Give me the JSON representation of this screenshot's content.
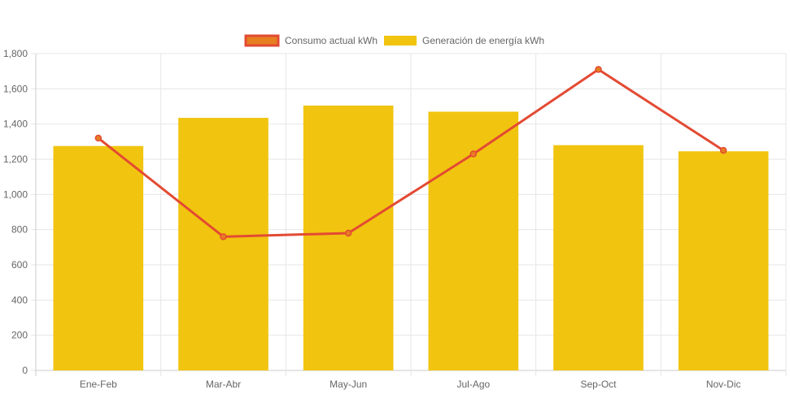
{
  "chart_data": {
    "type": "bar",
    "categories": [
      "Ene-Feb",
      "Mar-Abr",
      "May-Jun",
      "Jul-Ago",
      "Sep-Oct",
      "Nov-Dic"
    ],
    "series": [
      {
        "name": "Consumo actual kWh",
        "type": "line",
        "color": "#e34a33",
        "fill_color": "#e67e22",
        "values": [
          1320,
          760,
          780,
          1230,
          1710,
          1250
        ]
      },
      {
        "name": "Generación de energía kWh",
        "type": "bar",
        "color": "#f1c40f",
        "values": [
          1275,
          1435,
          1505,
          1470,
          1280,
          1245
        ]
      }
    ],
    "ylim": [
      0,
      1800
    ],
    "yticks": [
      0,
      200,
      400,
      600,
      800,
      1000,
      1200,
      1400,
      1600,
      1800
    ],
    "ytick_labels": [
      "0",
      "200",
      "400",
      "600",
      "800",
      "1,000",
      "1,200",
      "1,400",
      "1,600",
      "1,800"
    ],
    "grid": true,
    "legend_position": "top-center"
  }
}
